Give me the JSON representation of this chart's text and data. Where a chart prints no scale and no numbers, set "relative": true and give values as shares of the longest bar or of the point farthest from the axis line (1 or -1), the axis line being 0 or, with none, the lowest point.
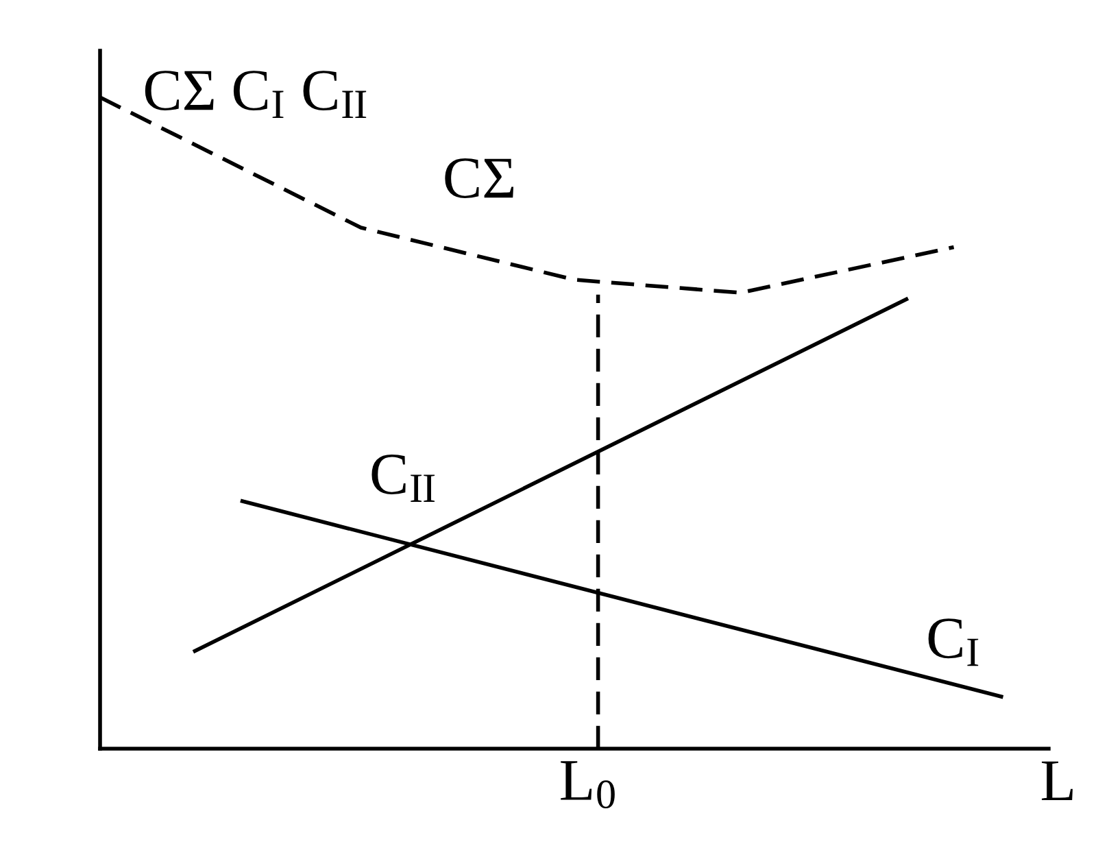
{
  "chart_data": {
    "type": "line",
    "relative": true,
    "xlabel": "L",
    "ylabel": "CΣ C$_{I}$ C$_{II}$",
    "marker": "none",
    "categories": [
      null,
      null,
      null,
      null,
      null,
      null,
      null,
      null,
      null,
      null,
      null,
      null,
      null,
      null,
      null,
      null,
      null,
      null,
      null,
      null,
      null,
      null,
      null,
      null,
      null,
      null,
      null,
      null,
      null,
      null,
      null,
      null,
      null,
      null,
      null,
      null,
      null,
      null,
      null,
      null
    ],
    "series": [
      {
        "name": "CΣ",
        "color": "#000000",
        "line_style": "dashed",
        "values": [
          1.0,
          null,
          null,
          null,
          null,
          null,
          null,
          null,
          null,
          null,
          null,
          0.8,
          null,
          null,
          null,
          null,
          null,
          null,
          null,
          null,
          0.72,
          null,
          null,
          null,
          null,
          null,
          null,
          0.7,
          null,
          null,
          null,
          null,
          null,
          null,
          null,
          null,
          0.77,
          null,
          null,
          null
        ]
      },
      {
        "name": "C$_{II}$",
        "color": "#000000",
        "line_style": "solid",
        "values": [
          null,
          null,
          null,
          null,
          0.15,
          null,
          null,
          null,
          null,
          null,
          null,
          null,
          null,
          null,
          null,
          null,
          null,
          null,
          null,
          null,
          null,
          null,
          null,
          null,
          null,
          null,
          null,
          null,
          null,
          null,
          null,
          null,
          null,
          null,
          0.69,
          null,
          null,
          null,
          null,
          null
        ]
      },
      {
        "name": "C$_{I}$",
        "color": "#000000",
        "line_style": "solid",
        "values": [
          null,
          null,
          null,
          null,
          null,
          null,
          0.38,
          null,
          null,
          null,
          null,
          null,
          null,
          null,
          null,
          null,
          null,
          null,
          null,
          null,
          null,
          null,
          null,
          null,
          null,
          null,
          null,
          null,
          null,
          null,
          null,
          null,
          null,
          null,
          null,
          null,
          null,
          null,
          0.08,
          null
        ]
      }
    ],
    "annotations": [
      "L$_{0}$"
    ]
  }
}
